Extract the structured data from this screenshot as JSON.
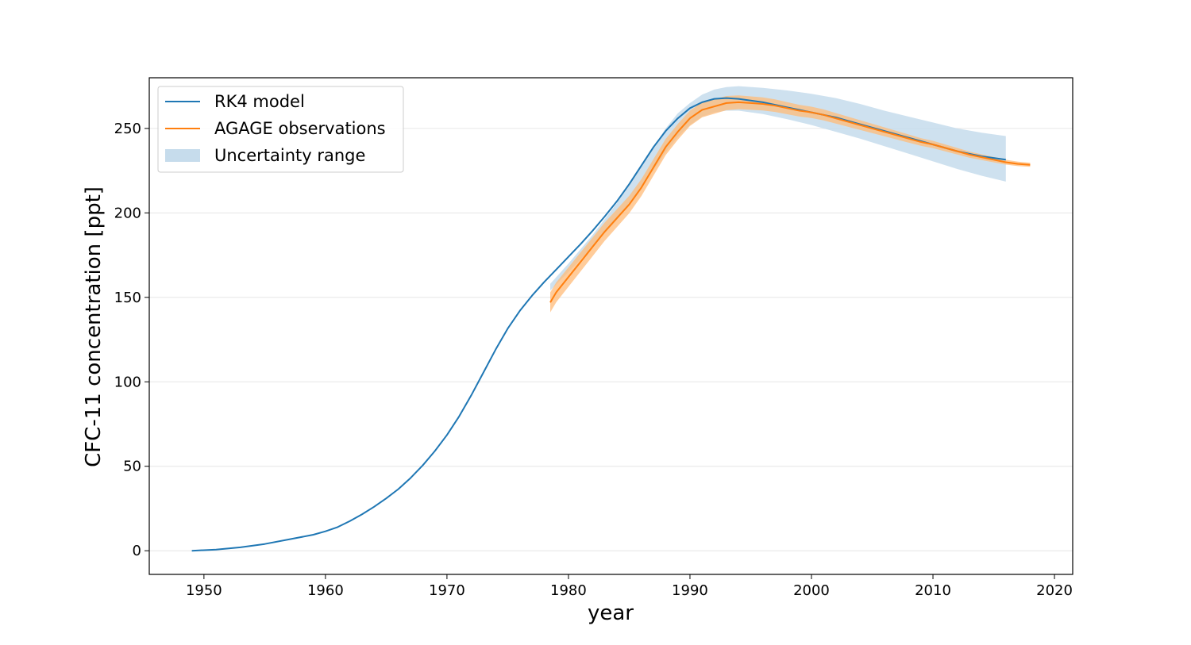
{
  "chart_data": {
    "type": "line",
    "title": "",
    "xlabel": "year",
    "ylabel": "CFC-11 concentration [ppt]",
    "xlim": [
      1945.5,
      2021.5
    ],
    "ylim": [
      -14,
      280
    ],
    "xticks": [
      1950,
      1960,
      1970,
      1980,
      1990,
      2000,
      2010,
      2020
    ],
    "xtick_labels": [
      "1950",
      "1960",
      "1970",
      "1980",
      "1990",
      "2000",
      "2010",
      "2020"
    ],
    "yticks": [
      0,
      50,
      100,
      150,
      200,
      250
    ],
    "ytick_labels": [
      "0",
      "50",
      "100",
      "150",
      "200",
      "250"
    ],
    "grid": "horizontal",
    "legend_position": "top-left",
    "colors": {
      "model": "#1f77b4",
      "observations": "#ff7f0e",
      "observation_band": "#ffbb78",
      "uncertainty": "#c6dcec"
    },
    "series": [
      {
        "name": "RK4 model",
        "x": [
          1949,
          1951,
          1953,
          1955,
          1957,
          1959,
          1960,
          1961,
          1962,
          1963,
          1964,
          1965,
          1966,
          1967,
          1968,
          1969,
          1970,
          1971,
          1972,
          1973,
          1974,
          1975,
          1976,
          1977,
          1978,
          1979,
          1980,
          1981,
          1982,
          1983,
          1984,
          1985,
          1986,
          1987,
          1988,
          1989,
          1990,
          1991,
          1992,
          1993,
          1994,
          1995,
          1996,
          1997,
          1998,
          1999,
          2000,
          2001,
          2002,
          2003,
          2004,
          2005,
          2006,
          2007,
          2008,
          2009,
          2010,
          2011,
          2012,
          2013,
          2014,
          2015,
          2016
        ],
        "values": [
          0,
          0.7,
          2,
          4,
          6.7,
          9.5,
          11.5,
          14,
          17.5,
          21.5,
          26,
          31,
          36.5,
          43,
          50.5,
          59,
          68.5,
          79.5,
          92,
          105.5,
          119,
          131.5,
          142,
          151,
          159,
          166.5,
          174,
          181.5,
          189.5,
          198,
          207,
          217,
          228,
          239,
          248.5,
          256,
          262,
          265.5,
          267.5,
          268,
          267.5,
          266.5,
          265.5,
          264,
          262.5,
          261,
          259.5,
          258,
          256.5,
          254.5,
          252.5,
          250.5,
          248.5,
          246.5,
          244.5,
          242.5,
          240.5,
          238.5,
          236.5,
          235,
          233.5,
          232.5,
          231.5
        ]
      },
      {
        "name": "AGAGE observations",
        "x": [
          1978.5,
          1979,
          1980,
          1981,
          1982,
          1983,
          1984,
          1985,
          1986,
          1987,
          1988,
          1989,
          1990,
          1991,
          1992,
          1993,
          1994,
          1995,
          1996,
          1997,
          1998,
          1999,
          2000,
          2001,
          2002,
          2003,
          2004,
          2005,
          2006,
          2007,
          2008,
          2009,
          2010,
          2011,
          2012,
          2013,
          2014,
          2015,
          2016,
          2017,
          2018
        ],
        "values": [
          147,
          153,
          162,
          171,
          180,
          189,
          197,
          205,
          215,
          227,
          239,
          248,
          256,
          261,
          263,
          265,
          265.5,
          265,
          264.5,
          263.5,
          262,
          260.5,
          259.5,
          258,
          256,
          254,
          252,
          250,
          248,
          246,
          244,
          242,
          240.5,
          238.5,
          236.5,
          234.5,
          233,
          231.5,
          230,
          229,
          228.5
        ]
      },
      {
        "name": "Uncertainty range",
        "x": [
          1978.5,
          1980,
          1982,
          1984,
          1986,
          1988,
          1989,
          1990,
          1991,
          1992,
          1993,
          1994,
          1996,
          1998,
          2000,
          2002,
          2004,
          2006,
          2008,
          2010,
          2012,
          2014,
          2016
        ],
        "lower": [
          154,
          165,
          180,
          196,
          215,
          236,
          245,
          252,
          257,
          259.5,
          260.5,
          260.5,
          258.5,
          255.5,
          252,
          248,
          244,
          239.5,
          235,
          230.5,
          226,
          222,
          218.5
        ],
        "upper": [
          158,
          170,
          187,
          206,
          228,
          250,
          259,
          265,
          270,
          273,
          274.5,
          275,
          274,
          272.5,
          270.5,
          268,
          264.5,
          260.5,
          257,
          253.5,
          250,
          247.5,
          245.5
        ]
      }
    ]
  }
}
